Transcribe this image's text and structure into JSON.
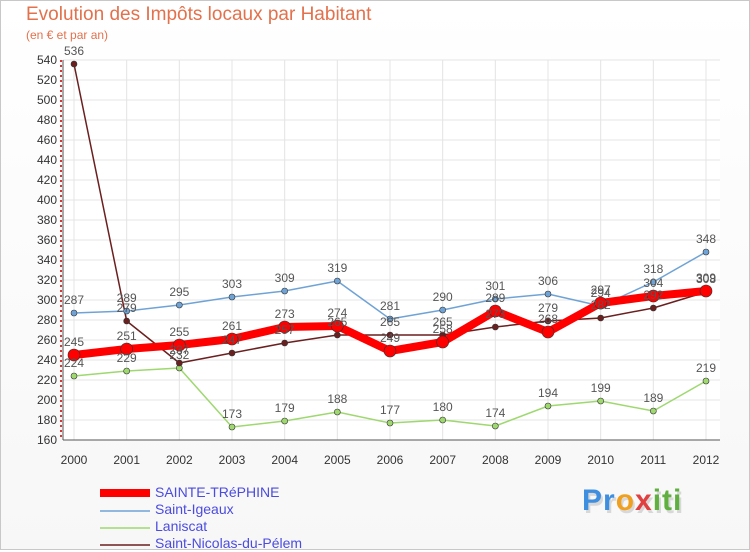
{
  "chart_data": {
    "type": "line",
    "title": "Evolution des Impôts locaux par Habitant",
    "subtitle": "(en € et par an)",
    "xlabel": "",
    "ylabel": "",
    "ylim": [
      160,
      540
    ],
    "ytick_step": 20,
    "grid": true,
    "categories": [
      "2000",
      "2001",
      "2002",
      "2003",
      "2004",
      "2005",
      "2006",
      "2007",
      "2008",
      "2009",
      "2010",
      "2011",
      "2012"
    ],
    "series": [
      {
        "name": "SAINTE-TRéPHINE",
        "color": "#ff0000",
        "values": [
          245,
          251,
          255,
          261,
          273,
          274,
          249,
          258,
          289,
          268,
          297,
          304,
          309
        ]
      },
      {
        "name": "Saint-Igeaux",
        "color": "#6fa3d6",
        "values": [
          287,
          289,
          295,
          303,
          309,
          319,
          281,
          290,
          301,
          306,
          294,
          318,
          348
        ]
      },
      {
        "name": "Laniscat",
        "color": "#9ed86f",
        "values": [
          224,
          229,
          232,
          173,
          179,
          188,
          177,
          180,
          174,
          194,
          199,
          189,
          219
        ]
      },
      {
        "name": "Saint-Nicolas-du-Pélem",
        "color": "#6b1f1f",
        "values": [
          536,
          279,
          237,
          247,
          257,
          265,
          265,
          265,
          273,
          279,
          282,
          292,
          308
        ]
      }
    ],
    "value_labels": [
      {
        "series": "SAINTE-TRéPHINE",
        "labels": [
          "245",
          "251",
          "255",
          "261",
          "273",
          "274",
          "249",
          "258",
          "289",
          "268",
          "297",
          "304",
          "309"
        ]
      },
      {
        "series": "Saint-Igeaux",
        "labels": [
          "287",
          "289",
          "295",
          "303",
          "309",
          "319",
          "281",
          "290",
          "301",
          "306",
          "294",
          "318",
          "348"
        ]
      },
      {
        "series": "Laniscat",
        "labels": [
          "224",
          "229",
          "232",
          "173",
          "179",
          "188",
          "177",
          "180",
          "174",
          "194",
          "199",
          "189",
          "219"
        ]
      },
      {
        "series": "Saint-Nicolas-du-Pélem",
        "labels": [
          "536",
          "279",
          "237",
          "247",
          "257",
          "265",
          "265",
          "265",
          "273",
          "279",
          "282",
          "292",
          "308"
        ]
      }
    ],
    "legend_position": "bottom-left"
  },
  "brand": {
    "p1": "Pr",
    "p2": "o",
    "p3": "x",
    "p4": "iti"
  }
}
